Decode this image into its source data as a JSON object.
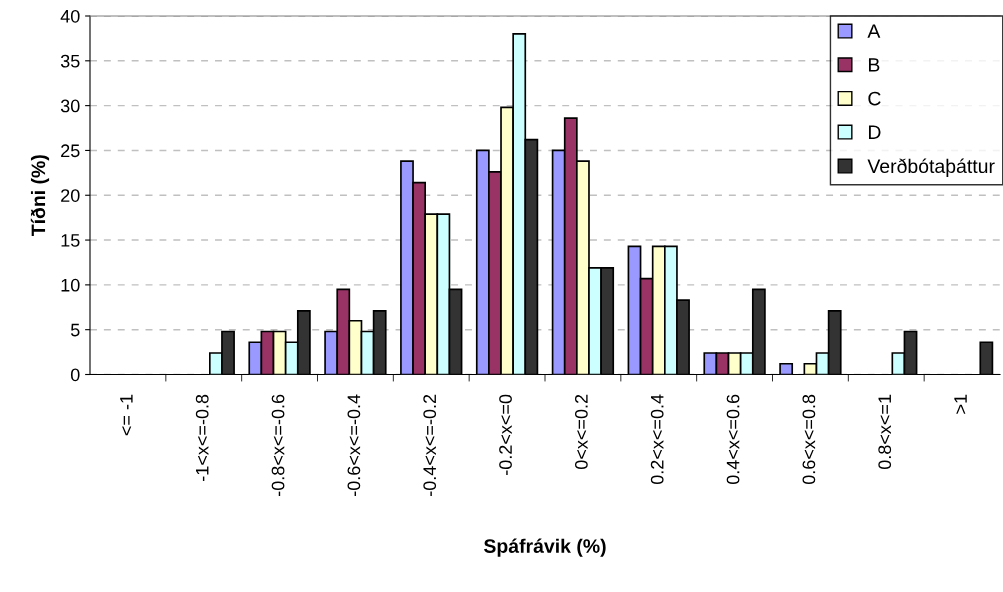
{
  "chart_data": {
    "type": "bar",
    "xlabel": "Spáfrávik (%)",
    "ylabel": "Tíðni (%)",
    "categories": [
      "<= -1",
      "-1<x<=-0.8",
      "-0.8<x<=-0.6",
      "-0.6<x<=-0.4",
      "-0.4<x<=-0.2",
      "-0.2<x<=0",
      "0<x<=0.2",
      "0.2<x<=0.4",
      "0.4<x<=0.6",
      "0.6<x<=0.8",
      "0.8<x<=1",
      ">1"
    ],
    "series": [
      {
        "name": "A",
        "color": "#9999ff",
        "values": [
          0,
          0,
          3.6,
          4.8,
          23.8,
          25,
          25,
          14.3,
          2.4,
          1.2,
          0,
          0
        ]
      },
      {
        "name": "B",
        "color": "#993366",
        "values": [
          0,
          0,
          4.8,
          9.5,
          21.4,
          22.6,
          28.6,
          10.7,
          2.4,
          0,
          0,
          0
        ]
      },
      {
        "name": "C",
        "color": "#ffffcc",
        "values": [
          0,
          0,
          4.8,
          6.0,
          17.9,
          29.8,
          23.8,
          14.3,
          2.4,
          1.2,
          0,
          0
        ]
      },
      {
        "name": "D",
        "color": "#ccffff",
        "values": [
          0,
          2.4,
          3.6,
          4.8,
          17.9,
          38,
          11.9,
          14.3,
          2.4,
          2.4,
          2.4,
          0
        ]
      },
      {
        "name": "Verðbótaþáttur",
        "color": "#333333",
        "values": [
          0,
          4.8,
          7.1,
          7.1,
          9.5,
          26.2,
          11.9,
          8.3,
          9.5,
          7.1,
          4.8,
          3.6
        ]
      }
    ],
    "ylim": [
      0,
      40
    ],
    "yticks": [
      0,
      5,
      10,
      15,
      20,
      25,
      30,
      35,
      40
    ],
    "grid": "y",
    "legend": "top right"
  }
}
